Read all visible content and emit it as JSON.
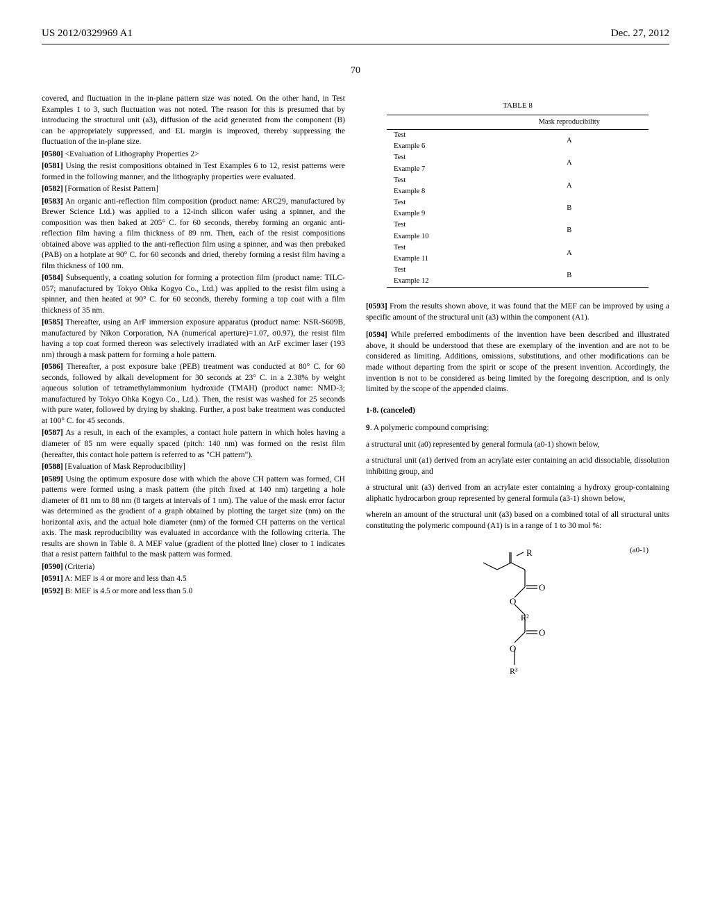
{
  "header": {
    "left": "US 2012/0329969 A1",
    "right": "Dec. 27, 2012"
  },
  "page_number": "70",
  "left_column": {
    "para1": "covered, and fluctuation in the in-plane pattern size was noted. On the other hand, in Test Examples 1 to 3, such fluctuation was not noted. The reason for this is presumed that by introducing the structural unit (a3), diffusion of the acid generated from the component (B) can be appropriately suppressed, and EL margin is improved, thereby suppressing the fluctuation of the in-plane size.",
    "para0580_num": "[0580]",
    "para0580": "  <Evaluation of Lithography Properties 2>",
    "para0581_num": "[0581]",
    "para0581": "  Using the resist compositions obtained in Test Examples 6 to 12, resist patterns were formed in the following manner, and the lithography properties were evaluated.",
    "para0582_num": "[0582]",
    "para0582": "  [Formation of Resist Pattern]",
    "para0583_num": "[0583]",
    "para0583": "  An organic anti-reflection film composition (product name: ARC29, manufactured by Brewer Science Ltd.) was applied to a 12-inch silicon wafer using a spinner, and the composition was then baked at 205° C. for 60 seconds, thereby forming an organic anti-reflection film having a film thickness of 89 nm. Then, each of the resist compositions obtained above was applied to the anti-reflection film using a spinner, and was then prebaked (PAB) on a hotplate at 90° C. for 60 seconds and dried, thereby forming a resist film having a film thickness of 100 nm.",
    "para0584_num": "[0584]",
    "para0584": "  Subsequently, a coating solution for forming a protection film (product name: TILC-057; manufactured by Tokyo Ohka Kogyo Co., Ltd.) was applied to the resist film using a spinner, and then heated at 90° C. for 60 seconds, thereby forming a top coat with a film thickness of 35 nm.",
    "para0585_num": "[0585]",
    "para0585": "  Thereafter, using an ArF immersion exposure apparatus (product name: NSR-S609B, manufactured by Nikon Corporation, NA (numerical aperture)=1.07, σ0.97), the resist film having a top coat formed thereon was selectively irradiated with an ArF excimer laser (193 nm) through a mask pattern for forming a hole pattern.",
    "para0586_num": "[0586]",
    "para0586": "  Thereafter, a post exposure bake (PEB) treatment was conducted at 80° C. for 60 seconds, followed by alkali development for 30 seconds at 23° C. in a 2.38% by weight aqueous solution of tetramethylammonium hydroxide (TMAH) (product name: NMD-3; manufactured by Tokyo Ohka Kogyo Co., Ltd.). Then, the resist was washed for 25 seconds with pure water, followed by drying by shaking. Further, a post bake treatment was conducted at 100° C. for 45 seconds.",
    "para0587_num": "[0587]",
    "para0587": "  As a result, in each of the examples, a contact hole pattern in which holes having a diameter of 85 nm were equally spaced (pitch: 140 nm) was formed on the resist film (hereafter, this contact hole pattern is referred to as \"CH pattern\").",
    "para0588_num": "[0588]",
    "para0588": "  [Evaluation of Mask Reproducibility]",
    "para0589_num": "[0589]",
    "para0589": "  Using the optimum exposure dose with which the above CH pattern was formed, CH patterns were formed using a mask pattern (the pitch fixed at 140 nm) targeting a hole diameter of 81 nm to 88 nm (8 targets at intervals of 1 nm). The value of the mask error factor was determined as the gradient of a graph obtained by plotting the target size (nm) on the horizontal axis, and the actual hole diameter (nm) of the formed CH patterns on the vertical axis. The mask reproducibility was evaluated in accordance with the following criteria. The results are shown in Table 8. A MEF value (gradient of the plotted line) closer to 1 indicates that a resist pattern faithful to the mask pattern was formed.",
    "para0590_num": "[0590]",
    "para0590": "  (Criteria)",
    "para0591_num": "[0591]",
    "para0591": "  A: MEF is 4 or more and less than 4.5",
    "para0592_num": "[0592]",
    "para0592": "  B: MEF is 4.5 or more and less than 5.0"
  },
  "table8": {
    "title": "TABLE 8",
    "header": "Mask reproducibility",
    "rows": [
      {
        "name": "Test Example 6",
        "value": "A"
      },
      {
        "name": "Test Example 7",
        "value": "A"
      },
      {
        "name": "Test Example 8",
        "value": "A"
      },
      {
        "name": "Test Example 9",
        "value": "B"
      },
      {
        "name": "Test Example 10",
        "value": "B"
      },
      {
        "name": "Test Example 11",
        "value": "A"
      },
      {
        "name": "Test Example 12",
        "value": "B"
      }
    ]
  },
  "right_column": {
    "para0593_num": "[0593]",
    "para0593": "  From the results shown above, it was found that the MEF can be improved by using a specific amount of the structural unit (a3) within the component (A1).",
    "para0594_num": "[0594]",
    "para0594": "  While preferred embodiments of the invention have been described and illustrated above, it should be understood that these are exemplary of the invention and are not to be considered as limiting. Additions, omissions, substitutions, and other modifications can be made without departing from the spirit or scope of the present invention. Accordingly, the invention is not to be considered as being limited by the foregoing description, and is only limited by the scope of the appended claims.",
    "claim18": "1-8. (canceled)",
    "claim9": "9. A polymeric compound comprising:",
    "claim9a": "a structural unit (a0) represented by general formula (a0-1) shown below,",
    "claim9b": "a structural unit (a1) derived from an acrylate ester containing an acid dissociable, dissolution inhibiting group, and",
    "claim9c": "a structural unit (a3) derived from an acrylate ester containing a hydroxy group-containing aliphatic hydrocarbon group represented by general formula (a3-1) shown below,",
    "claim9d": "wherein an amount of the structural unit (a3) based on a combined total of all structural units constituting the polymeric compound (A1) is in a range of 1 to 30 mol %:",
    "formula_label": "(a0-1)"
  },
  "formula": {
    "labels": {
      "R": "R",
      "O1": "O",
      "O2": "O",
      "R2": "R²",
      "O3": "O",
      "O4": "O",
      "R3": "R³"
    }
  }
}
